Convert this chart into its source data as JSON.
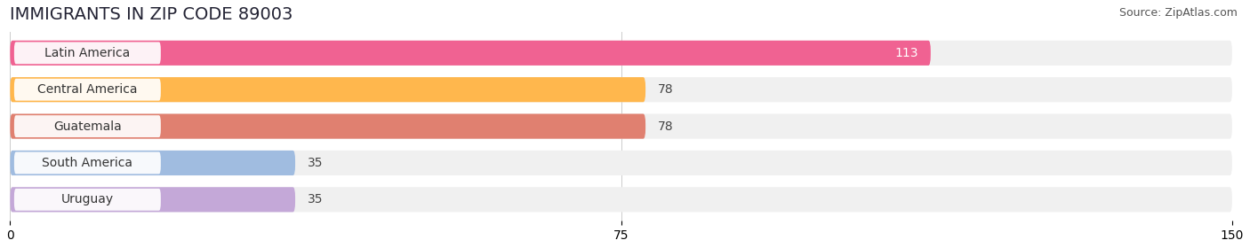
{
  "title": "IMMIGRANTS IN ZIP CODE 89003",
  "source": "Source: ZipAtlas.com",
  "categories": [
    "Latin America",
    "Central America",
    "Guatemala",
    "South America",
    "Uruguay"
  ],
  "values": [
    113,
    78,
    78,
    35,
    35
  ],
  "bar_colors": [
    "#f06292",
    "#ffb74d",
    "#e08070",
    "#a0bce0",
    "#c4a8d8"
  ],
  "xlim": [
    0,
    150
  ],
  "xticks": [
    0,
    75,
    150
  ],
  "title_fontsize": 14,
  "label_fontsize": 10,
  "value_fontsize": 10,
  "source_fontsize": 9,
  "bg_color": "#ffffff",
  "bar_height": 0.68,
  "row_bg_color": "#f0f0f0",
  "label_bg_color": "#ffffff"
}
